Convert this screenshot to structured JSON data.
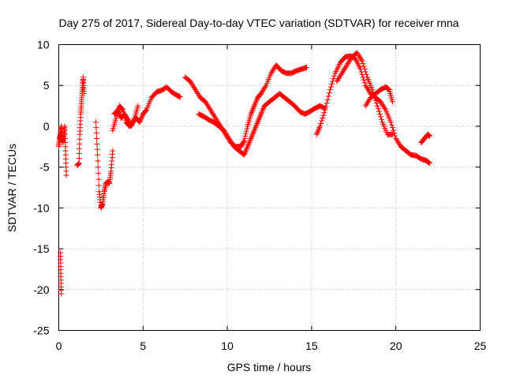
{
  "chart_data": {
    "type": "scatter",
    "title": "Day 275 of 2017, Sidereal Day-to-day VTEC variation (SDTVAR) for receiver rnna",
    "xlabel": "GPS time / hours",
    "ylabel": "SDTVAR / TECUs",
    "xlim": [
      0,
      25
    ],
    "ylim": [
      -25,
      10
    ],
    "xticks": [
      0,
      5,
      10,
      15,
      20,
      25
    ],
    "yticks": [
      -25,
      -20,
      -15,
      -10,
      -5,
      0,
      5,
      10
    ],
    "xtick_labels": [
      "0",
      "5",
      "10",
      "15",
      "20",
      "25"
    ],
    "ytick_labels": [
      "-25",
      "-20",
      "-15",
      "-10",
      "-5",
      "0",
      "5",
      "10"
    ],
    "grid": true,
    "marker": "+",
    "color": "#ff0000",
    "series": [
      {
        "name": "s1",
        "x": [
          0.0,
          0.05,
          0.1,
          0.15,
          0.2,
          0.25,
          0.3,
          0.35,
          0.4,
          0.45
        ],
        "y": [
          -2.5,
          -1.5,
          -1.0,
          0.0,
          -1.5,
          -2.0,
          -1.0,
          0.0,
          -3.0,
          -6.0
        ]
      },
      {
        "name": "s2",
        "x": [
          0.1,
          0.12,
          0.15
        ],
        "y": [
          -15.5,
          -18.0,
          -20.5
        ]
      },
      {
        "name": "s3",
        "x": [
          1.1,
          1.2,
          1.25,
          1.3,
          1.35,
          1.4,
          1.45,
          1.5
        ],
        "y": [
          -4.8,
          -4.5,
          -1.0,
          1.5,
          3.0,
          4.5,
          6.0,
          4.0
        ]
      },
      {
        "name": "s4",
        "x": [
          2.2,
          2.3,
          2.4,
          2.5,
          2.6,
          2.7,
          2.8,
          2.9,
          3.0,
          3.1,
          3.2
        ],
        "y": [
          0.5,
          -3.5,
          -8.0,
          -10.0,
          -9.5,
          -8.0,
          -7.0,
          -6.8,
          -7.0,
          -5.5,
          -3.0
        ]
      },
      {
        "name": "s5",
        "x": [
          3.2,
          3.4,
          3.6,
          3.8,
          4.0,
          4.2,
          4.4,
          4.6,
          4.8,
          5.0,
          5.2,
          5.5,
          5.8,
          6.1,
          6.4,
          6.7,
          7.0,
          7.2
        ],
        "y": [
          -0.5,
          1.0,
          2.5,
          2.0,
          0.5,
          0.0,
          0.5,
          1.0,
          0.5,
          1.5,
          2.0,
          3.5,
          4.2,
          4.4,
          4.8,
          4.2,
          3.8,
          3.6
        ]
      },
      {
        "name": "s6",
        "x": [
          3.3,
          3.5,
          3.7,
          3.9,
          4.1,
          4.3,
          4.5,
          4.7
        ],
        "y": [
          1.5,
          2.0,
          1.0,
          1.5,
          0.8,
          0.0,
          1.0,
          2.5
        ]
      },
      {
        "name": "s7",
        "x": [
          7.5,
          7.8,
          8.1,
          8.4,
          8.7,
          9.0,
          9.3,
          9.6,
          9.9,
          10.2,
          10.5,
          10.8,
          11.0,
          11.2,
          11.4,
          11.6,
          11.8,
          12.0,
          12.3,
          12.6,
          12.9,
          13.2,
          13.5,
          13.8,
          14.1,
          14.4,
          14.7
        ],
        "y": [
          6.0,
          5.5,
          4.5,
          3.5,
          3.0,
          2.0,
          1.0,
          0.0,
          -1.0,
          -2.0,
          -2.5,
          -2.5,
          -1.8,
          0.0,
          1.5,
          2.5,
          3.5,
          4.0,
          5.0,
          6.5,
          7.5,
          6.8,
          6.5,
          6.5,
          6.8,
          7.0,
          7.2
        ]
      },
      {
        "name": "s8",
        "x": [
          8.3,
          8.6,
          8.9,
          9.2,
          9.5,
          9.8,
          10.1,
          10.4,
          10.7,
          11.0,
          11.2,
          11.4,
          11.6,
          11.8,
          12.0,
          12.2,
          12.5,
          12.8,
          13.1,
          13.4,
          13.7,
          14.0,
          14.3,
          14.6,
          14.9,
          15.2,
          15.5,
          15.8
        ],
        "y": [
          1.5,
          1.2,
          0.8,
          0.5,
          0.0,
          -0.5,
          -1.5,
          -2.5,
          -3.0,
          -3.5,
          -2.5,
          -1.5,
          -0.5,
          0.5,
          1.5,
          2.5,
          3.0,
          3.5,
          4.0,
          3.5,
          3.0,
          2.5,
          1.8,
          1.5,
          1.8,
          2.2,
          2.5,
          2.2
        ]
      },
      {
        "name": "s9",
        "x": [
          15.3,
          15.5,
          15.8,
          16.1,
          16.4,
          16.7,
          17.0,
          17.3,
          17.6,
          17.9,
          18.2,
          18.5,
          18.8,
          19.1,
          19.4,
          19.7,
          20.0,
          20.3,
          20.6,
          20.9,
          21.2,
          21.5,
          21.8,
          22.0
        ],
        "y": [
          -1.0,
          0.0,
          2.0,
          4.5,
          6.5,
          7.8,
          8.5,
          8.6,
          8.3,
          7.0,
          5.0,
          4.0,
          3.5,
          3.0,
          2.0,
          0.5,
          -1.5,
          -2.5,
          -3.0,
          -3.5,
          -3.6,
          -4.0,
          -4.2,
          -4.5
        ]
      },
      {
        "name": "s10",
        "x": [
          16.5,
          16.8,
          17.1,
          17.4,
          17.7,
          18.0,
          18.3,
          18.6,
          18.9,
          19.2,
          19.5,
          19.8
        ],
        "y": [
          5.5,
          6.5,
          7.5,
          8.5,
          9.0,
          8.0,
          6.0,
          4.5,
          2.5,
          0.5,
          -1.0,
          -1.0
        ]
      },
      {
        "name": "s11",
        "x": [
          18.2,
          18.5,
          18.8,
          19.1,
          19.4,
          19.6,
          19.8
        ],
        "y": [
          2.5,
          3.5,
          4.0,
          4.5,
          4.8,
          4.5,
          3.0
        ]
      },
      {
        "name": "s12",
        "x": [
          21.5,
          21.7,
          21.9,
          22.0
        ],
        "y": [
          -2.0,
          -1.5,
          -1.0,
          -1.2
        ]
      }
    ]
  }
}
